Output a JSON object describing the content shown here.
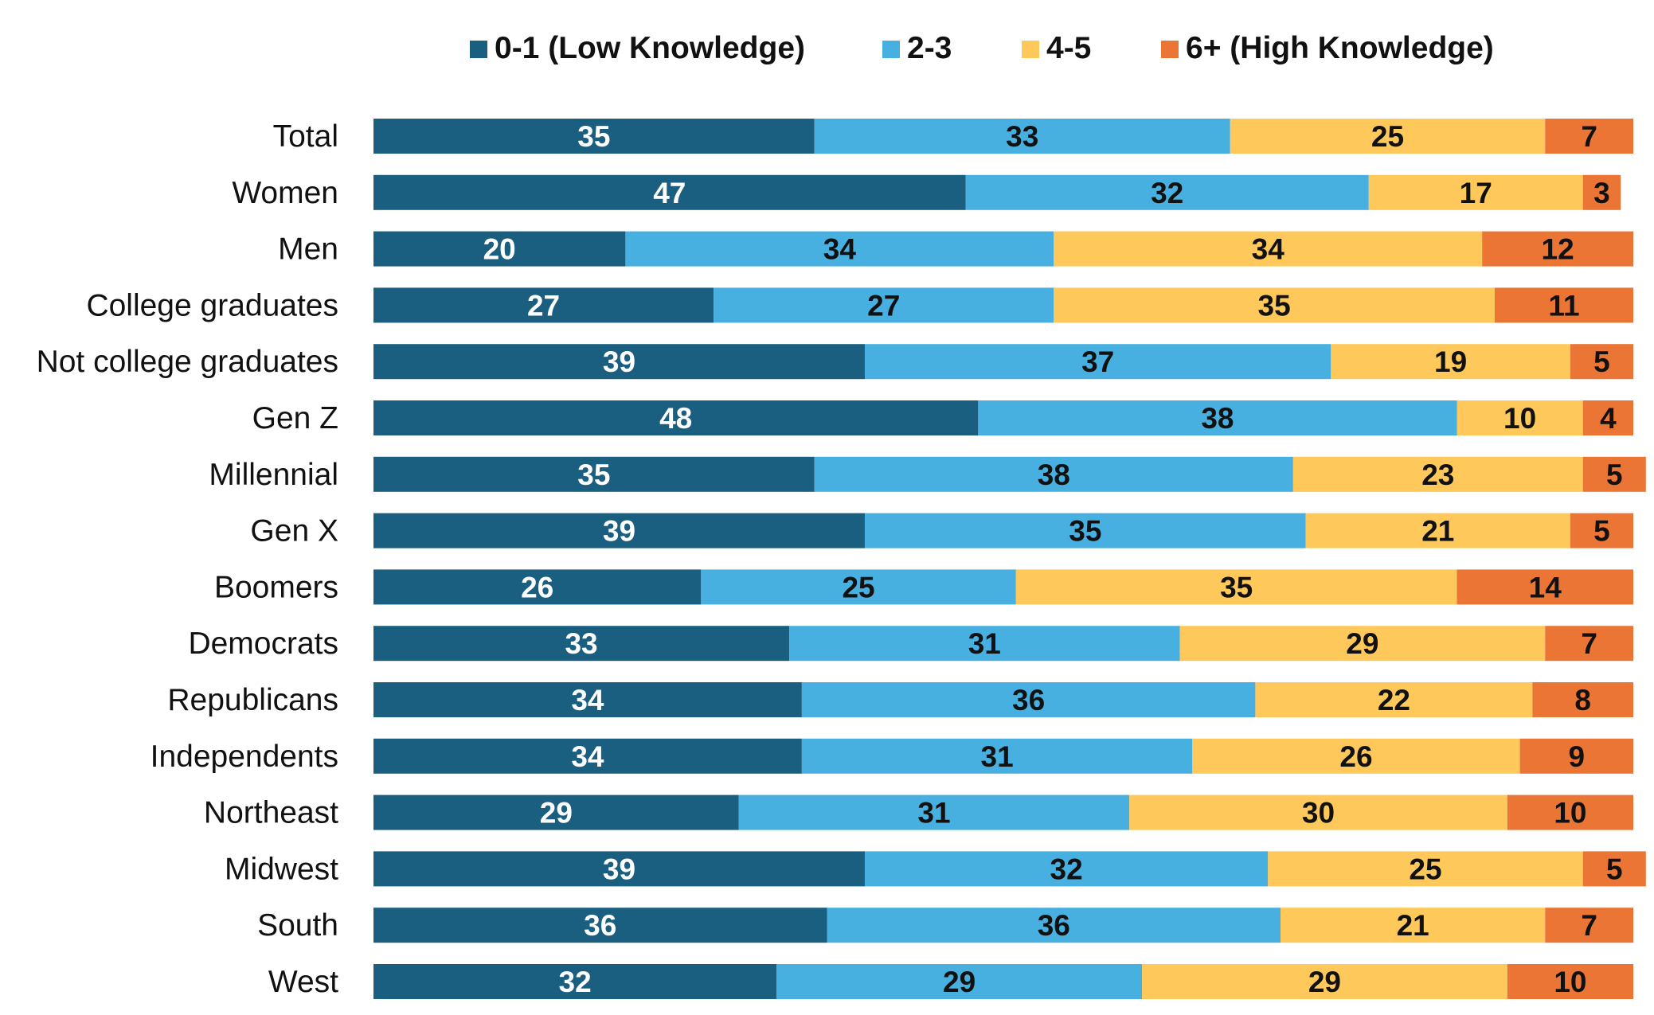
{
  "chart_data": {
    "type": "bar",
    "orientation": "horizontal",
    "stacked": true,
    "normalized_to": 100,
    "title": "",
    "xlabel": "",
    "ylabel": "",
    "xlim": [
      0,
      100
    ],
    "grid": false,
    "legend_position": "top",
    "data_labels": true,
    "categories": [
      "Total",
      "Women",
      "Men",
      "College graduates",
      "Not college graduates",
      "Gen Z",
      "Millennial",
      "Gen X",
      "Boomers",
      "Democrats",
      "Republicans",
      "Independents",
      "Northeast",
      "Midwest",
      "South",
      "West"
    ],
    "series": [
      {
        "name": "0-1 (Low Knowledge)",
        "color": "#1a5e80",
        "label_color": "#ffffff",
        "values": [
          35,
          47,
          20,
          27,
          39,
          48,
          35,
          39,
          26,
          33,
          34,
          34,
          29,
          39,
          36,
          32
        ]
      },
      {
        "name": "2-3",
        "color": "#48b0e0",
        "label_color": "#111111",
        "values": [
          33,
          32,
          34,
          27,
          37,
          38,
          38,
          35,
          25,
          31,
          36,
          31,
          31,
          32,
          36,
          29
        ]
      },
      {
        "name": "4-5",
        "color": "#fec85a",
        "label_color": "#111111",
        "values": [
          25,
          17,
          34,
          35,
          19,
          10,
          23,
          21,
          35,
          29,
          22,
          26,
          30,
          25,
          21,
          29
        ]
      },
      {
        "name": "6+ (High Knowledge)",
        "color": "#ea7535",
        "label_color": "#111111",
        "values": [
          7,
          3,
          12,
          11,
          5,
          4,
          5,
          5,
          14,
          7,
          8,
          9,
          10,
          5,
          7,
          10
        ]
      }
    ]
  }
}
